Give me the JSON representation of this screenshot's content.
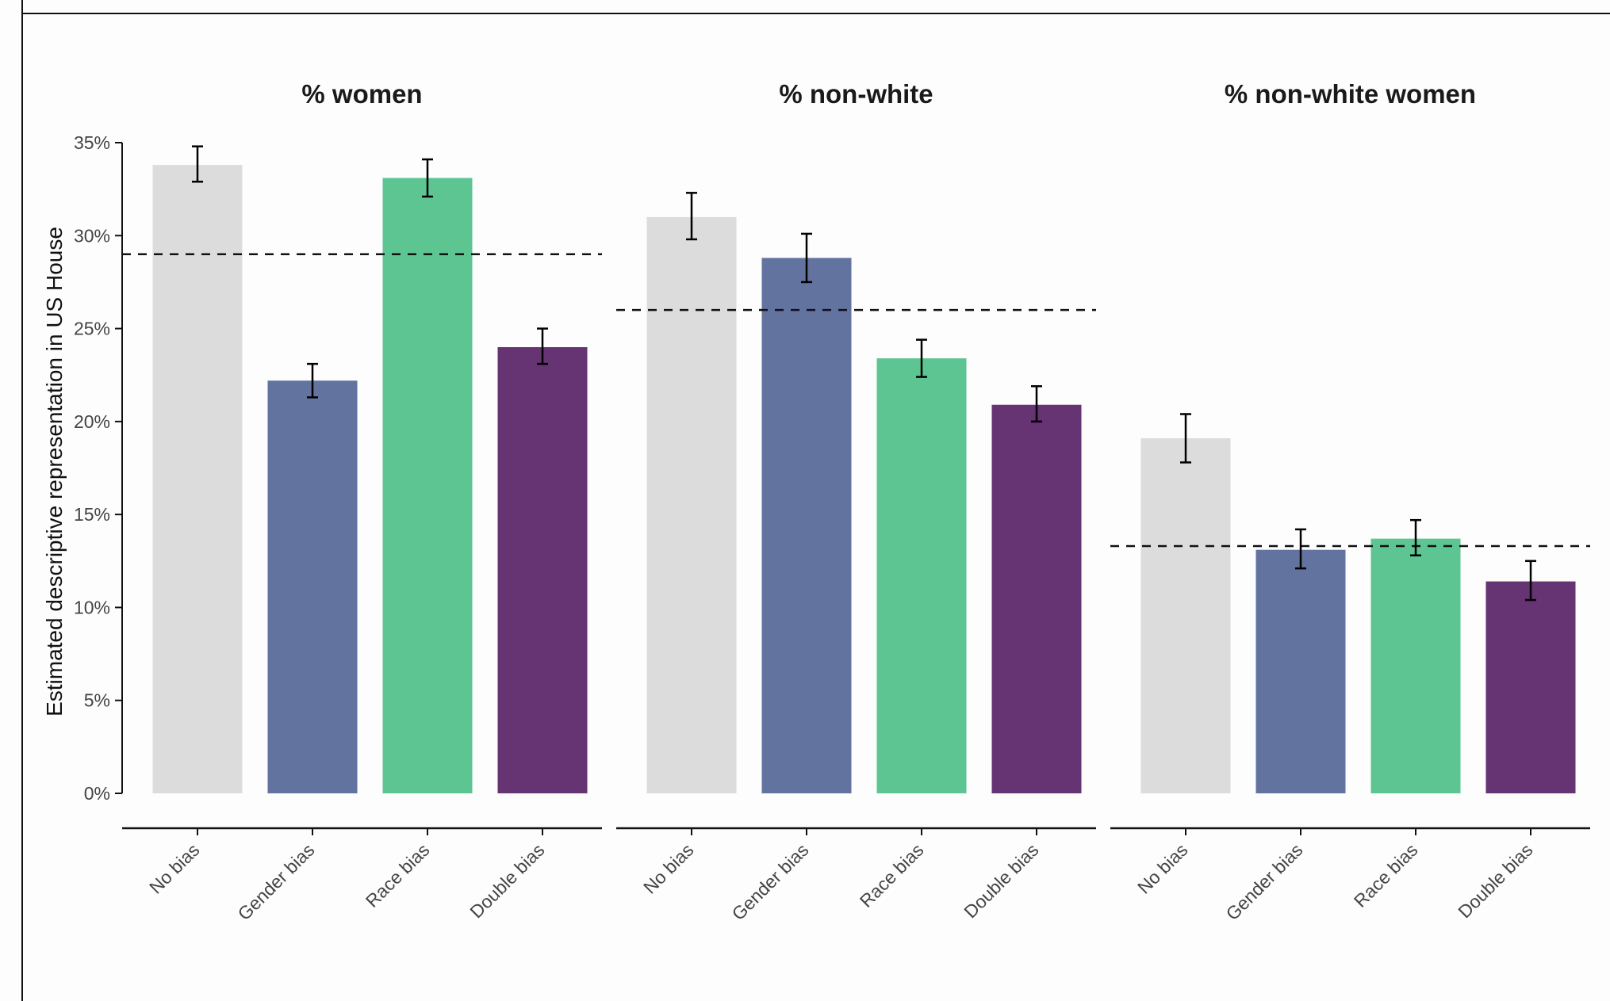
{
  "chart_data": {
    "type": "bar",
    "ylabel": "Estimated descriptive representation in US House",
    "ylim": [
      0,
      35
    ],
    "yticks": [
      0,
      5,
      10,
      15,
      20,
      25,
      30,
      35
    ],
    "ytick_labels": [
      "0%",
      "5%",
      "10%",
      "15%",
      "20%",
      "25%",
      "30%",
      "35%"
    ],
    "grid": false,
    "categories": [
      "No bias",
      "Gender bias",
      "Race bias",
      "Double bias"
    ],
    "colors": [
      "#dcdcdc",
      "#6273a0",
      "#5dc592",
      "#663373"
    ],
    "errorbar_color": "#000000",
    "reference_line_style": "dashed",
    "panels": [
      {
        "title": "% women",
        "values": [
          33.8,
          22.2,
          33.1,
          24.0
        ],
        "error_low": [
          32.9,
          21.3,
          32.1,
          23.1
        ],
        "error_high": [
          34.8,
          23.1,
          34.1,
          25.0
        ],
        "reference_line": 29.0
      },
      {
        "title": "% non-white",
        "values": [
          31.0,
          28.8,
          23.4,
          20.9
        ],
        "error_low": [
          29.8,
          27.5,
          22.4,
          20.0
        ],
        "error_high": [
          32.3,
          30.1,
          24.4,
          21.9
        ],
        "reference_line": 26.0
      },
      {
        "title": "% non-white women",
        "values": [
          19.1,
          13.1,
          13.7,
          11.4
        ],
        "error_low": [
          17.8,
          12.1,
          12.8,
          10.4
        ],
        "error_high": [
          20.4,
          14.2,
          14.7,
          12.5
        ],
        "reference_line": 13.3
      }
    ]
  }
}
